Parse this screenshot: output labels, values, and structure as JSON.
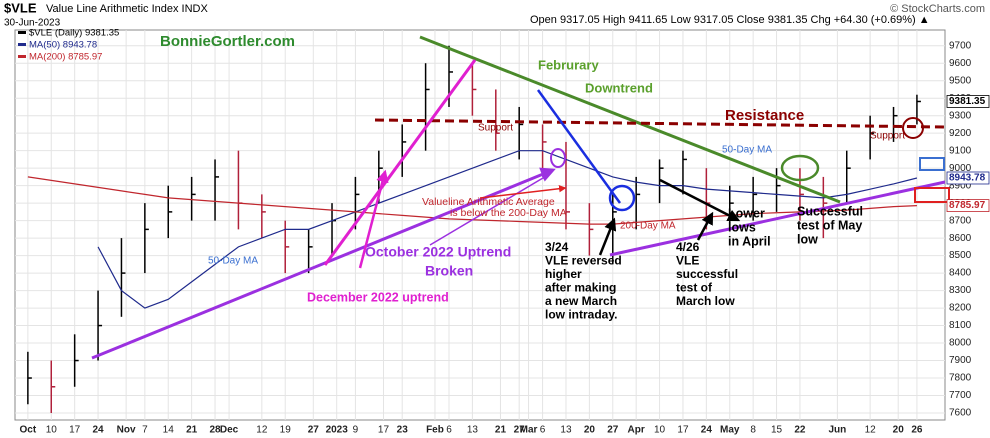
{
  "chart_data": {
    "type": "ohlc",
    "symbol": "$VLE",
    "title": "Value Line Arithmetic Index INDX",
    "date": "30-Jun-2023",
    "quote": "Open 9317.05 High 9411.65 Low 9317.05 Close 9381.35 Chg +64.30 (+0.69%) ▲",
    "source": "© StockCharts.com",
    "xlim": [
      -0.55,
      39.2
    ],
    "xticks": [
      {
        "value": 0,
        "label": "Oct"
      },
      {
        "value": 1,
        "label": "10"
      },
      {
        "value": 2,
        "label": "17"
      },
      {
        "value": 3,
        "label": "24"
      },
      {
        "value": 4.2,
        "label": "Nov"
      },
      {
        "value": 5,
        "label": "7"
      },
      {
        "value": 6,
        "label": "14"
      },
      {
        "value": 7,
        "label": "21"
      },
      {
        "value": 8,
        "label": "28"
      },
      {
        "value": 8.6,
        "label": "Dec"
      },
      {
        "value": 10,
        "label": "12"
      },
      {
        "value": 11,
        "label": "19"
      },
      {
        "value": 12.2,
        "label": "27"
      },
      {
        "value": 13.2,
        "label": "2023"
      },
      {
        "value": 14,
        "label": "9"
      },
      {
        "value": 15.2,
        "label": "17"
      },
      {
        "value": 16,
        "label": "23"
      },
      {
        "value": 17.4,
        "label": "Feb"
      },
      {
        "value": 18,
        "label": "6"
      },
      {
        "value": 19,
        "label": "13"
      },
      {
        "value": 20.2,
        "label": "21"
      },
      {
        "value": 21,
        "label": "27"
      },
      {
        "value": 21.4,
        "label": "Mar"
      },
      {
        "value": 22,
        "label": "6"
      },
      {
        "value": 23,
        "label": "13"
      },
      {
        "value": 24,
        "label": "20"
      },
      {
        "value": 25,
        "label": "27"
      },
      {
        "value": 26,
        "label": "Apr"
      },
      {
        "value": 27,
        "label": "10"
      },
      {
        "value": 28,
        "label": "17"
      },
      {
        "value": 29,
        "label": "24"
      },
      {
        "value": 30,
        "label": "May"
      },
      {
        "value": 31,
        "label": "8"
      },
      {
        "value": 32,
        "label": "15"
      },
      {
        "value": 33,
        "label": "22"
      },
      {
        "value": 34.6,
        "label": "Jun"
      },
      {
        "value": 36,
        "label": "12"
      },
      {
        "value": 37.2,
        "label": "20"
      },
      {
        "value": 38,
        "label": "26"
      }
    ],
    "ylim": [
      7560,
      9790
    ],
    "yticks": [
      7600,
      7700,
      7800,
      7900,
      8000,
      8100,
      8200,
      8300,
      8400,
      8500,
      8600,
      8700,
      8800,
      8900,
      9000,
      9100,
      9200,
      9300,
      9400,
      9500,
      9600,
      9700
    ],
    "grid": true,
    "series": [
      {
        "name": "$VLE (Daily) 9381.35",
        "color": "#000000",
        "values": [
          7800,
          7750,
          7900,
          8100,
          8400,
          8650,
          8750,
          8850,
          8950,
          8800,
          8750,
          8550,
          8550,
          8700,
          8850,
          9000,
          9150,
          9450,
          9550,
          9450,
          9200,
          9250,
          9150,
          8750,
          8650,
          8750,
          8850,
          9000,
          9050,
          8800,
          8800,
          8850,
          8900,
          8850,
          8800,
          9000,
          9200,
          9300,
          9381.35
        ],
        "high": [
          7950,
          7900,
          8050,
          8300,
          8600,
          8800,
          8900,
          8950,
          9050,
          9100,
          8850,
          8700,
          8650,
          8800,
          8950,
          9100,
          9250,
          9600,
          9700,
          9600,
          9450,
          9350,
          9250,
          9150,
          8800,
          8850,
          8950,
          9050,
          9100,
          9000,
          8900,
          8950,
          9000,
          9000,
          8950,
          9100,
          9300,
          9350,
          9420
        ],
        "low": [
          7650,
          7600,
          7750,
          7900,
          8150,
          8400,
          8600,
          8700,
          8700,
          8650,
          8600,
          8400,
          8400,
          8500,
          8650,
          8800,
          8950,
          9100,
          9350,
          9300,
          9100,
          9050,
          9000,
          8650,
          8500,
          8450,
          8650,
          8800,
          8850,
          8650,
          8650,
          8700,
          8750,
          8700,
          8600,
          8800,
          9050,
          9150,
          9250
        ]
      },
      {
        "name": "MA(50) 8943.78",
        "color": "#1f2a8c",
        "values": [
          null,
          null,
          null,
          8550,
          8300,
          8200,
          8250,
          8350,
          8450,
          8550,
          8600,
          8650,
          8650,
          8700,
          8750,
          8800,
          8850,
          8900,
          8950,
          9000,
          9050,
          9100,
          9100,
          9050,
          9000,
          8950,
          8920,
          8900,
          8900,
          8880,
          8870,
          8860,
          8850,
          8840,
          8830,
          8850,
          8880,
          8910,
          8943.78
        ]
      },
      {
        "name": "MA(200) 8785.97",
        "color": "#c0262d",
        "values": [
          8950,
          8930,
          8910,
          8890,
          8870,
          8850,
          8830,
          8820,
          8810,
          8800,
          8790,
          8780,
          8770,
          8760,
          8750,
          8740,
          8730,
          8720,
          8710,
          8705,
          8700,
          8695,
          8690,
          8685,
          8680,
          8680,
          8690,
          8700,
          8710,
          8720,
          8730,
          8740,
          8745,
          8750,
          8755,
          8760,
          8770,
          8780,
          8785.97
        ]
      }
    ],
    "annotations": [
      {
        "color": "#2e8b2e",
        "lines": [
          "BonnieGortler.com"
        ]
      },
      {
        "color": "#5aa02c",
        "lines": [
          "Februrary"
        ]
      },
      {
        "color": "#5aa02c",
        "lines": [
          "Downtrend"
        ]
      },
      {
        "color": "#8b0000",
        "lines": [
          "Resistance"
        ]
      },
      {
        "color": "#8b0000",
        "lines": [
          "Support"
        ]
      },
      {
        "color": "#8b0000",
        "lines": [
          "Support"
        ]
      },
      {
        "color": "#3a6fd0",
        "lines": [
          "50-Day MA"
        ]
      },
      {
        "color": "#3a6fd0",
        "lines": [
          "50-Day MA"
        ]
      },
      {
        "color": "#c0262d",
        "lines": [
          "200-Day MA"
        ]
      },
      {
        "color": "#c0262d",
        "lines": [
          "Valueline Arithmetic Average",
          "is below the 200-Day MA"
        ]
      },
      {
        "color": "#9b30e0",
        "lines": [
          "October 2022 Uptrend",
          "Broken"
        ]
      },
      {
        "color": "#e020d0",
        "lines": [
          "December 2022 uptrend"
        ]
      },
      {
        "color": "#000000",
        "lines": [
          "3/24",
          "VLE reversed",
          "higher",
          "after making",
          "a new March",
          "low intraday."
        ]
      },
      {
        "color": "#000000",
        "lines": [
          "4/26",
          "VLE",
          "successful",
          "test of",
          "March low"
        ]
      },
      {
        "color": "#000000",
        "lines": [
          "Lower",
          "lows",
          "in April"
        ]
      },
      {
        "color": "#000000",
        "lines": [
          "Successful",
          "test of May",
          "low"
        ]
      }
    ]
  }
}
